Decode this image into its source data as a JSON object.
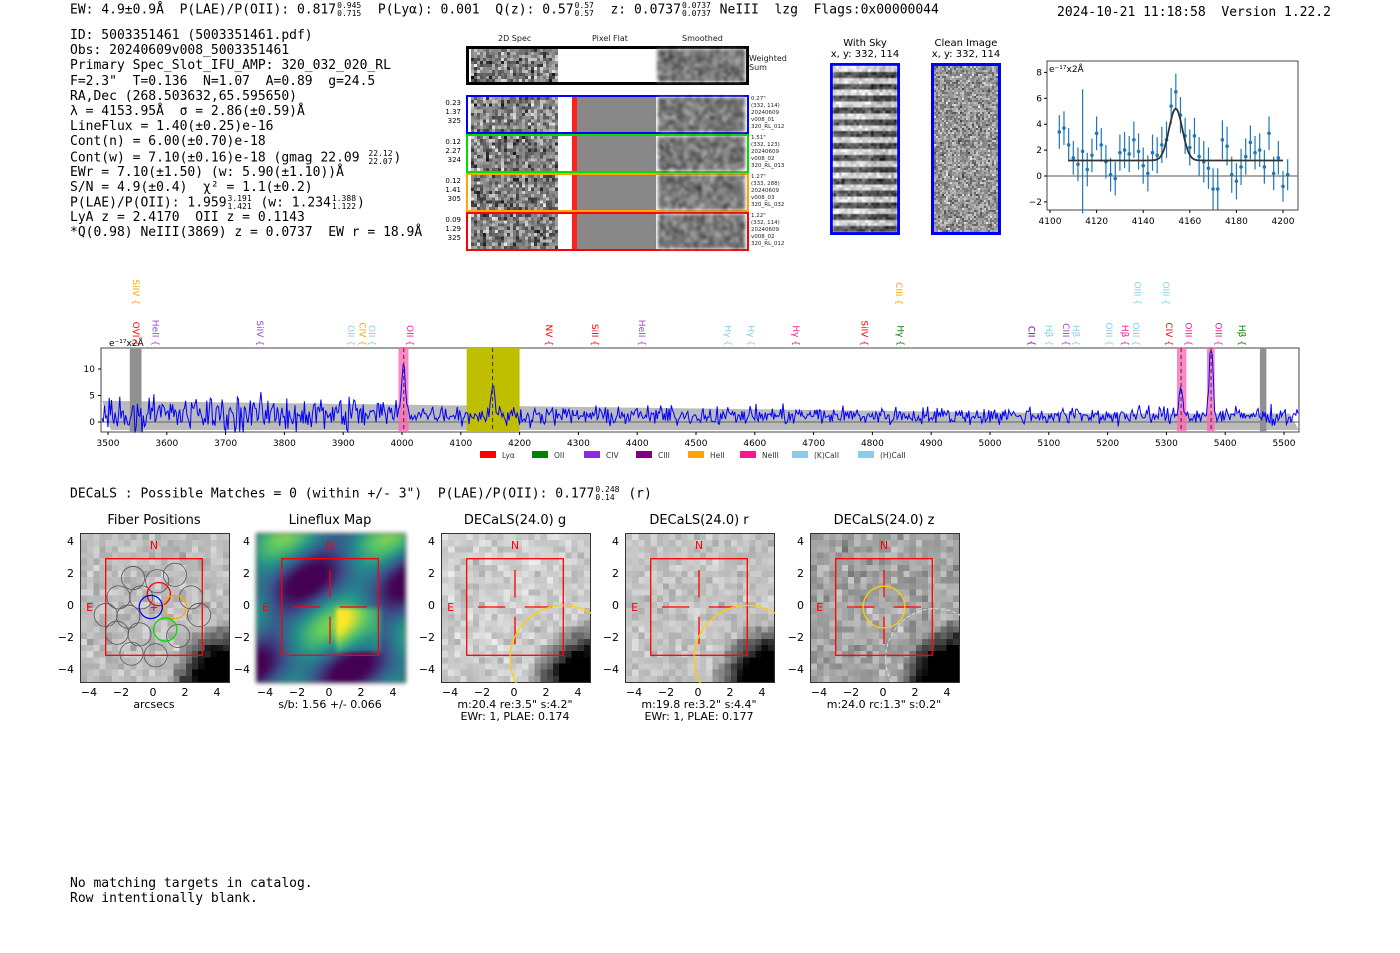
{
  "header": {
    "ew": "EW: 4.9±0.9Å",
    "plae_label": "P(LAE)/P(OII): 0.817",
    "plae_hi": "0.945",
    "plae_lo": "0.715",
    "plya": "P(Lyα): 0.001",
    "q_label": "Q(z): 0.57",
    "q_hi": "0.57",
    "q_lo": "0.57",
    "z_label": "z: 0.0737",
    "z_hi": "0.0737",
    "z_lo": "0.0737",
    "line": "NeIII",
    "tag": "lzg",
    "flags": "Flags:0x00000044",
    "timestamp": "2024-10-21 11:18:58",
    "version": "Version 1.22.2"
  },
  "info": {
    "id": "ID: 5003351461 (5003351461.pdf)",
    "obs": "Obs: 20240609v008_5003351461",
    "primary": "Primary Spec_Slot_IFU_AMP: 320_032_020_RL",
    "params": "F=2.3\"  T=0.136  N=1.07  A=0.89  g=24.5",
    "radec": "RA,Dec (268.503632,65.595650)",
    "lambda": "λ = 4153.95Å  σ = 2.86(±0.59)Å",
    "lineflux": "LineFlux = 1.40(±0.25)e-16",
    "contn": "Cont(n) = 6.00(±0.70)e-18",
    "contw": "Cont(w) = 7.10(±0.16)e-18 (gmag 22.09",
    "contw_hi": "22.12",
    "contw_lo": "22.07",
    "contw_end": ")",
    "ewr": "EWr = 7.10(±1.50) (w: 5.90(±1.10))Å",
    "sn": "S/N = 4.9(±0.4)  χ² = 1.1(±0.2)",
    "plae": "P(LAE)/P(OII): 1.959",
    "plae_hi": "3.191",
    "plae_lo": "1.421",
    "plae_w": "(w: 1.234",
    "plae_w_hi": "1.388",
    "plae_w_lo": "1.122",
    "plae_w_end": ")",
    "lya": "LyA z = 2.4170  OII z = 0.1143",
    "q": "*Q(0.98) NeIII(3869) z = 0.0737  EW r = 18.9Å"
  },
  "spec2d": {
    "headers": [
      "2D Spec",
      "Pixel Flat",
      "Smoothed"
    ],
    "weighted_label": "Weighted Sum",
    "fibers": [
      {
        "color": "#0000ff",
        "left": [
          "0.23",
          "1.37",
          "325"
        ],
        "right": [
          "0.27\"",
          "(332, 114)",
          "20240609",
          "v008_01",
          "320_RL_012"
        ]
      },
      {
        "color": "#00dd00",
        "left": [
          "0.12",
          "2.27",
          "324"
        ],
        "right": [
          "1.51\"",
          "(332, 123)",
          "20240609",
          "v008_02",
          "320_RL_013"
        ]
      },
      {
        "color": "#ffa500",
        "left": [
          "0.12",
          "1.41",
          "305"
        ],
        "right": [
          "1.27\"",
          "(333, 288)",
          "20240609",
          "v008_03",
          "320_RL_032"
        ]
      },
      {
        "color": "#ff0000",
        "left": [
          "0.09",
          "1.29",
          "325"
        ],
        "right": [
          "1.22\"",
          "(332, 114)",
          "20240609",
          "v008_02",
          "320_RL_012"
        ]
      }
    ]
  },
  "sky": {
    "with_sky_title": "With Sky",
    "with_sky_xy": "x, y: 332, 114",
    "clean_title": "Clean Image",
    "clean_xy": "x, y: 332, 114"
  },
  "decals": {
    "summary": "DECaLS : Possible Matches = 0 (within +/- 3\")  P(LAE)/P(OII): 0.177",
    "summary_hi": "0.248",
    "summary_lo": "0.14",
    "summary_end": "(r)",
    "panels": [
      {
        "title": "Fiber Positions",
        "captions": [
          "arcsecs"
        ]
      },
      {
        "title": "Lineflux Map",
        "captions": [
          "s/b: 1.56 +/- 0.066"
        ]
      },
      {
        "title": "DECaLS(24.0) g",
        "captions": [
          "m:20.4  re:3.5\"  s:4.2\"",
          "EWr: 1, PLAE: 0.174"
        ]
      },
      {
        "title": "DECaLS(24.0) r",
        "captions": [
          "m:19.8  re:3.2\"  s:4.4\"",
          "EWr: 1, PLAE: 0.177"
        ]
      },
      {
        "title": "DECaLS(24.0) z",
        "captions": [
          "m:24.0 rc:1.3\"  s:0.2\""
        ]
      }
    ],
    "north": "N",
    "east": "E",
    "ticks": [
      "4",
      "2",
      "0",
      "−2",
      "−4"
    ],
    "xticks": [
      "−4",
      "−2",
      "0",
      "2",
      "4"
    ]
  },
  "footer": {
    "line1": "No matching targets in catalog.",
    "line2": "Row intentionally blank."
  },
  "chart_data": [
    {
      "type": "scatter",
      "title": "Emission line zoom",
      "ylabel": "e⁻¹⁷x2Å",
      "xlim": [
        4100,
        4205
      ],
      "ylim": [
        -3,
        8.5
      ],
      "xticks": [
        4100,
        4120,
        4140,
        4160,
        4180,
        4200
      ],
      "yticks": [
        -2,
        0,
        2,
        4,
        6,
        8
      ],
      "x": [
        4104,
        4106,
        4108,
        4110,
        4112,
        4114,
        4116,
        4118,
        4120,
        4122,
        4124,
        4126,
        4128,
        4130,
        4132,
        4134,
        4136,
        4138,
        4140,
        4142,
        4144,
        4146,
        4148,
        4150,
        4152,
        4154,
        4156,
        4158,
        4160,
        4162,
        4164,
        4166,
        4168,
        4170,
        4172,
        4174,
        4176,
        4178,
        4180,
        4182,
        4184,
        4186,
        4188,
        4190,
        4192,
        4194,
        4196,
        4198,
        4200,
        4202
      ],
      "y": [
        3.4,
        3.7,
        2.4,
        1.4,
        0.9,
        1.9,
        0.5,
        1.6,
        3.3,
        2.4,
        1.1,
        0.1,
        -0.2,
        1.8,
        2.0,
        1.7,
        2.8,
        1.9,
        0.8,
        0.2,
        1.8,
        1.6,
        2.4,
        2.8,
        5.4,
        6.5,
        4.7,
        3.1,
        2.2,
        3.1,
        1.5,
        1.1,
        0.6,
        -1.0,
        -1.0,
        2.8,
        2.3,
        0.1,
        -0.4,
        0.7,
        1.5,
        2.6,
        1.8,
        2.0,
        0.7,
        3.3,
        0.2,
        1.4,
        -0.8,
        0.1
      ],
      "yerr": [
        1.3,
        1.3,
        1.3,
        1.3,
        1.3,
        4.8,
        1.3,
        1.3,
        1.3,
        1.3,
        1.3,
        1.3,
        1.3,
        1.4,
        1.4,
        1.4,
        1.4,
        1.4,
        1.4,
        1.4,
        1.4,
        1.4,
        1.4,
        1.4,
        1.4,
        1.4,
        1.4,
        1.4,
        1.4,
        1.4,
        1.5,
        1.6,
        1.6,
        1.6,
        1.6,
        1.5,
        1.5,
        1.4,
        1.4,
        1.4,
        1.4,
        1.3,
        1.3,
        1.3,
        1.3,
        1.3,
        1.3,
        1.3,
        1.2,
        1.2
      ],
      "fit": {
        "center": 4153.95,
        "sigma": 2.86,
        "amplitude": 4.0,
        "baseline": 1.2,
        "range": [
          4108,
          4200
        ]
      }
    },
    {
      "type": "line",
      "title": "Full spectrum",
      "ylabel": "e⁻¹⁷x2Å",
      "xlim": [
        3490,
        5525
      ],
      "ylim": [
        -2,
        13
      ],
      "xticks": [
        3500,
        3600,
        3700,
        3800,
        3900,
        4000,
        4100,
        4200,
        4300,
        4400,
        4500,
        4600,
        4700,
        4800,
        4900,
        5000,
        5100,
        5200,
        5300,
        5400,
        5500
      ],
      "yticks": [
        0,
        5,
        10
      ],
      "baseline_flux": 1.5,
      "peaks": [
        {
          "x": 4003,
          "y": 10
        },
        {
          "x": 4154,
          "y": 6.5
        },
        {
          "x": 5325,
          "y": 6
        },
        {
          "x": 5376,
          "y": 14
        }
      ],
      "dashed_lines": [
        4003,
        4154,
        5325,
        5376
      ],
      "regions": [
        {
          "type": "masked",
          "x0": 3537,
          "x1": 3557,
          "color": "#909090"
        },
        {
          "type": "masked",
          "x0": 5459,
          "x1": 5470,
          "color": "#909090"
        },
        {
          "type": "line_window",
          "x0": 4110,
          "x1": 4200,
          "color": "#bfbf00"
        },
        {
          "type": "match",
          "x0": 3994,
          "x1": 4011,
          "color": "#ff69b4"
        },
        {
          "type": "match",
          "x0": 5318,
          "x1": 5334,
          "color": "#ff69b4"
        },
        {
          "type": "match",
          "x0": 5369,
          "x1": 5382,
          "color": "#ff69b4"
        }
      ],
      "line_labels": [
        {
          "name": "SiIV",
          "x": 3537,
          "color": "#ffa500",
          "row": "top"
        },
        {
          "name": "CIII",
          "x": 4835,
          "color": "#ffa500",
          "row": "top"
        },
        {
          "name": "OIII",
          "x": 5241,
          "color": "#87ceeb",
          "row": "top"
        },
        {
          "name": "OIII",
          "x": 5289,
          "color": "#87ceeb",
          "row": "top"
        },
        {
          "name": "OVI",
          "x": 3537,
          "color": "#ff0000",
          "row": "bottom"
        },
        {
          "name": "HeII",
          "x": 3571,
          "color": "#a040e0",
          "row": "bottom"
        },
        {
          "name": "SiIV",
          "x": 3748,
          "color": "#a040e0",
          "row": "bottom"
        },
        {
          "name": "OII",
          "x": 3903,
          "color": "#87ceeb",
          "row": "bottom"
        },
        {
          "name": "CIV",
          "x": 3923,
          "color": "#ffa500",
          "row": "bottom"
        },
        {
          "name": "OII",
          "x": 3939,
          "color": "#87ceeb",
          "row": "bottom"
        },
        {
          "name": "OII",
          "x": 4003,
          "color": "#ff1493",
          "row": "bottom"
        },
        {
          "name": "NV",
          "x": 4240,
          "color": "#ff0000",
          "row": "bottom"
        },
        {
          "name": "SiII",
          "x": 4318,
          "color": "#ff0000",
          "row": "bottom"
        },
        {
          "name": "HeII",
          "x": 4398,
          "color": "#a040e0",
          "row": "bottom"
        },
        {
          "name": "Hγ",
          "x": 4544,
          "color": "#87ceeb",
          "row": "bottom"
        },
        {
          "name": "Hγ",
          "x": 4583,
          "color": "#87ceeb",
          "row": "bottom"
        },
        {
          "name": "Hγ",
          "x": 4660,
          "color": "#ff1493",
          "row": "bottom"
        },
        {
          "name": "SiIV",
          "x": 4776,
          "color": "#ff0000",
          "row": "bottom"
        },
        {
          "name": "Hγ",
          "x": 4838,
          "color": "#008000",
          "row": "bottom"
        },
        {
          "name": "CII",
          "x": 5060,
          "color": "#800080",
          "row": "bottom"
        },
        {
          "name": "Hβ",
          "x": 5090,
          "color": "#87ceeb",
          "row": "bottom"
        },
        {
          "name": "CIII",
          "x": 5119,
          "color": "#a040e0",
          "row": "bottom"
        },
        {
          "name": "Hβ",
          "x": 5136,
          "color": "#87ceeb",
          "row": "bottom"
        },
        {
          "name": "OIII",
          "x": 5192,
          "color": "#87ceeb",
          "row": "bottom"
        },
        {
          "name": "Hβ",
          "x": 5219,
          "color": "#ff1493",
          "row": "bottom"
        },
        {
          "name": "OIII",
          "x": 5238,
          "color": "#87ceeb",
          "row": "bottom"
        },
        {
          "name": "CIV",
          "x": 5294,
          "color": "#ff0000",
          "row": "bottom"
        },
        {
          "name": "OIII",
          "x": 5327,
          "color": "#ff1493",
          "row": "bottom"
        },
        {
          "name": "OIII",
          "x": 5378,
          "color": "#ff1493",
          "row": "bottom"
        },
        {
          "name": "Hβ",
          "x": 5418,
          "color": "#008000",
          "row": "bottom"
        }
      ],
      "legend": [
        {
          "name": "Lyα",
          "color": "#ff0000"
        },
        {
          "name": "OII",
          "color": "#008000"
        },
        {
          "name": "CIV",
          "color": "#8a2be2"
        },
        {
          "name": "CIII",
          "color": "#800080"
        },
        {
          "name": "HeII",
          "color": "#ffa500"
        },
        {
          "name": "NeIII",
          "color": "#ff1493"
        },
        {
          "name": "(K)CaII",
          "color": "#87ceeb"
        },
        {
          "name": "(H)CaII",
          "color": "#87ceeb"
        }
      ],
      "legend_position": "bottom"
    }
  ]
}
